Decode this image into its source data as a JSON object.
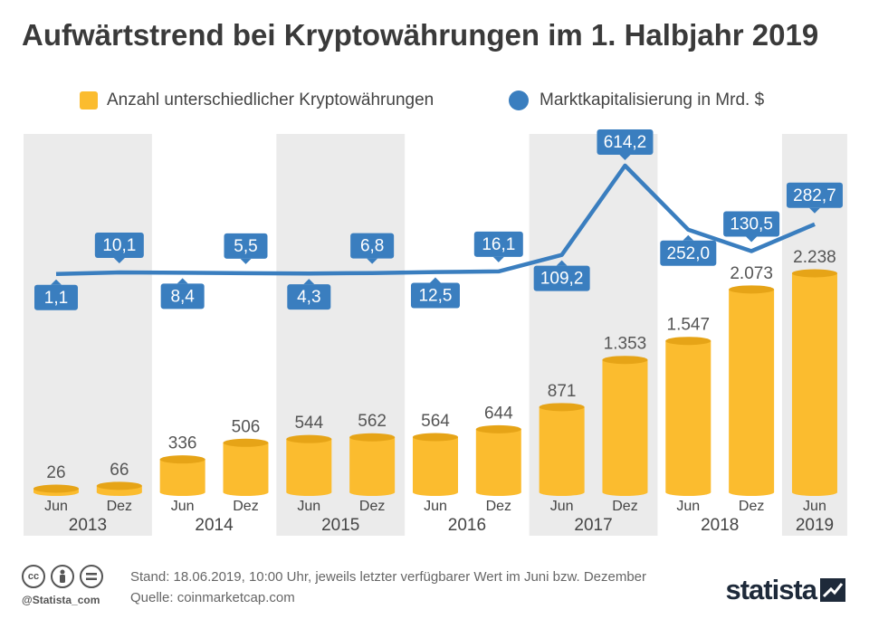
{
  "title": "Aufwärtstrend bei Kryptowährungen im 1. Halbjahr 2019",
  "legend": {
    "bars": "Anzahl unterschiedlicher Kryptowährungen",
    "line": "Marktkapitalisierung in Mrd. $"
  },
  "colors": {
    "bar": "#fbbc2f",
    "bar_top": "#e6a417",
    "line": "#3a7ebf",
    "band": "#ebebeb"
  },
  "chart_data": {
    "type": "bar",
    "categories": [
      "Jun",
      "Dez",
      "Jun",
      "Dez",
      "Jun",
      "Dez",
      "Jun",
      "Dez",
      "Jun",
      "Dez",
      "Jun",
      "Dez",
      "Jun"
    ],
    "years": [
      "2013",
      "2014",
      "2015",
      "2016",
      "2017",
      "2018",
      "2019"
    ],
    "series": [
      {
        "name": "Anzahl unterschiedlicher Kryptowährungen",
        "type": "bar",
        "values": [
          26,
          66,
          336,
          506,
          544,
          562,
          564,
          644,
          871,
          1353,
          1547,
          2073,
          2238
        ],
        "labels": [
          "26",
          "66",
          "336",
          "506",
          "544",
          "562",
          "564",
          "644",
          "871",
          "1.353",
          "1.547",
          "2.073",
          "2.238"
        ]
      },
      {
        "name": "Marktkapitalisierung in Mrd. $",
        "type": "line",
        "values": [
          1.1,
          10.1,
          8.4,
          5.5,
          4.3,
          6.8,
          12.5,
          16.1,
          109.2,
          614.2,
          252.0,
          130.5,
          282.7
        ],
        "labels": [
          "1,1",
          "10,1",
          "8,4",
          "5,5",
          "4,3",
          "6,8",
          "12,5",
          "16,1",
          "109,2",
          "614,2",
          "252,0",
          "130,5",
          "282,7"
        ]
      }
    ]
  },
  "footer": {
    "handle": "@Statista_com",
    "stand": "Stand: 18.06.2019, 10:00 Uhr, jeweils letzter verfügbarer Wert im Juni bzw. Dezember",
    "quelle": "Quelle: coinmarketcap.com",
    "logo": "statista",
    "icons": [
      "cc-icon",
      "by-icon",
      "nd-icon"
    ]
  }
}
